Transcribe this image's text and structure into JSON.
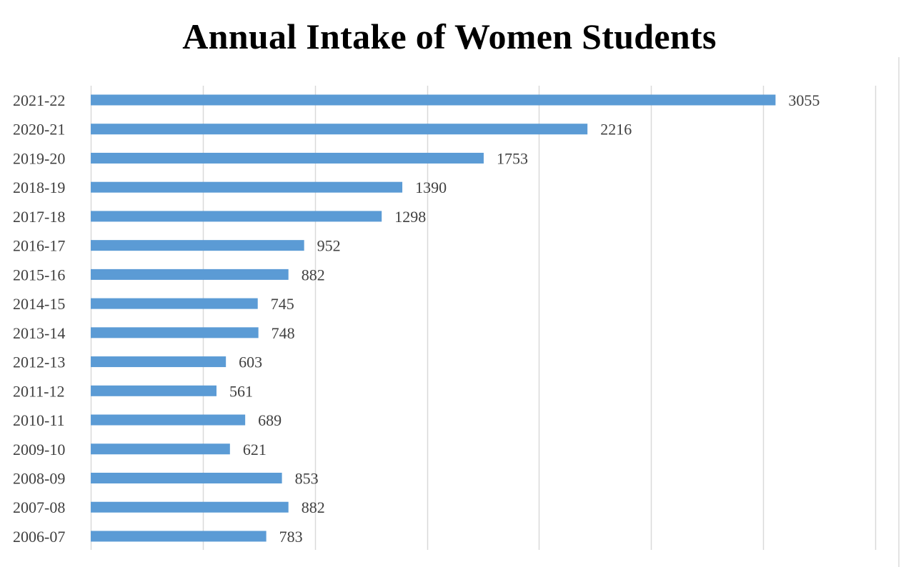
{
  "chart_data": {
    "type": "bar",
    "orientation": "horizontal",
    "title": "Annual Intake of Women Students",
    "categories": [
      "2021-22",
      "2020-21",
      "2019-20",
      "2018-19",
      "2017-18",
      "2016-17",
      "2015-16",
      "2014-15",
      "2013-14",
      "2012-13",
      "2011-12",
      "2010-11",
      "2009-10",
      "2008-09",
      "2007-08",
      "2006-07"
    ],
    "values": [
      3055,
      2216,
      1753,
      1390,
      1298,
      952,
      882,
      745,
      748,
      603,
      561,
      689,
      621,
      853,
      882,
      783
    ],
    "xlim": [
      0,
      3500
    ],
    "grid": true,
    "legend": "none",
    "data_labels": true,
    "bar_color": "#5b9bd5",
    "grid_color": "#d9d9d9"
  }
}
